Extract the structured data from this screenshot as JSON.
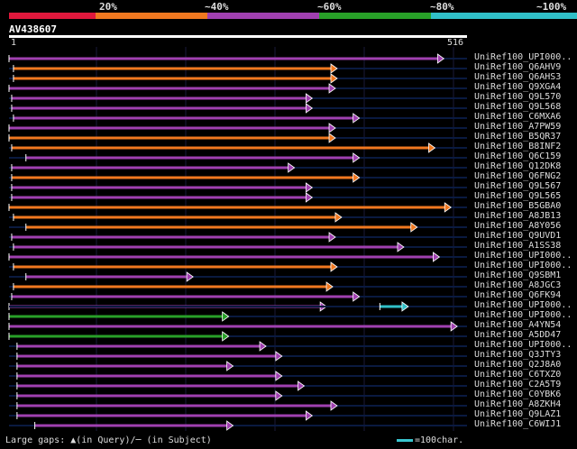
{
  "legend": {
    "labels": [
      "20%",
      "~40%",
      "~60%",
      "~80%",
      "~100%"
    ],
    "colors": [
      "#e0183c",
      "#f07820",
      "#a040b0",
      "#28a028",
      "#30c0c8"
    ]
  },
  "query": {
    "id": "AV438607",
    "start": "1",
    "end": "516"
  },
  "hits": [
    {
      "label": "UniRef100_UPI000..",
      "color": "#a040b0",
      "s": 1,
      "e": 490,
      "dim": false
    },
    {
      "label": "UniRef100_Q6AHV9",
      "color": "#f07820",
      "s": 6,
      "e": 370,
      "dim": false
    },
    {
      "label": "UniRef100_Q6AHS3",
      "color": "#f07820",
      "s": 6,
      "e": 370,
      "dim": false
    },
    {
      "label": "UniRef100_Q9XGA4",
      "color": "#a040b0",
      "s": 1,
      "e": 368,
      "dim": false
    },
    {
      "label": "UniRef100_Q9L570",
      "color": "#a040b0",
      "s": 4,
      "e": 342,
      "dim": false
    },
    {
      "label": "UniRef100_Q9L568",
      "color": "#a040b0",
      "s": 4,
      "e": 342,
      "dim": false
    },
    {
      "label": "UniRef100_C6MXA6",
      "color": "#a040b0",
      "s": 6,
      "e": 395,
      "dim": false
    },
    {
      "label": "UniRef100_A7PW59",
      "color": "#a040b0",
      "s": 1,
      "e": 368,
      "dim": false
    },
    {
      "label": "UniRef100_B5QR37",
      "color": "#f07820",
      "s": 1,
      "e": 368,
      "dim": false
    },
    {
      "label": "UniRef100_B8INF2",
      "color": "#f07820",
      "s": 4,
      "e": 480,
      "dim": false
    },
    {
      "label": "UniRef100_Q6C159",
      "color": "#a040b0",
      "s": 20,
      "e": 395,
      "dim": false
    },
    {
      "label": "UniRef100_Q12DK8",
      "color": "#a040b0",
      "s": 4,
      "e": 322,
      "dim": false
    },
    {
      "label": "UniRef100_Q6FNG2",
      "color": "#f07820",
      "s": 4,
      "e": 395,
      "dim": false
    },
    {
      "label": "UniRef100_Q9L567",
      "color": "#a040b0",
      "s": 4,
      "e": 342,
      "dim": false
    },
    {
      "label": "UniRef100_Q9L565",
      "color": "#a040b0",
      "s": 4,
      "e": 342,
      "dim": false
    },
    {
      "label": "UniRef100_B5GBA0",
      "color": "#f07820",
      "s": 1,
      "e": 498,
      "dim": false
    },
    {
      "label": "UniRef100_A8JB13",
      "color": "#f07820",
      "s": 6,
      "e": 375,
      "dim": false
    },
    {
      "label": "UniRef100_A8Y056",
      "color": "#f07820",
      "s": 20,
      "e": 460,
      "dim": false
    },
    {
      "label": "UniRef100_Q9UVD1",
      "color": "#a040b0",
      "s": 4,
      "e": 368,
      "dim": false
    },
    {
      "label": "UniRef100_A1SS38",
      "color": "#a040b0",
      "s": 6,
      "e": 445,
      "dim": false
    },
    {
      "label": "UniRef100_UPI000..",
      "color": "#a040b0",
      "s": 1,
      "e": 485,
      "dim": false
    },
    {
      "label": "UniRef100_UPI000..",
      "color": "#f07820",
      "s": 6,
      "e": 370,
      "dim": false
    },
    {
      "label": "UniRef100_Q9SBM1",
      "color": "#a040b0",
      "s": 20,
      "e": 208,
      "dim": false
    },
    {
      "label": "UniRef100_A8JGC3",
      "color": "#f07820",
      "s": 6,
      "e": 365,
      "dim": false
    },
    {
      "label": "UniRef100_Q6FK94",
      "color": "#a040b0",
      "s": 4,
      "e": 395,
      "dim": false
    },
    {
      "label": "UniRef100_UPI000..",
      "color": "#a040b0",
      "s": 1,
      "e": 358,
      "dim": false,
      "extra": {
        "color": "#30c0c8",
        "s": 418,
        "e": 450
      }
    },
    {
      "label": "UniRef100_UPI000..",
      "color": "#28a028",
      "s": 1,
      "e": 248,
      "dim": false
    },
    {
      "label": "UniRef100_A4YN54",
      "color": "#a040b0",
      "s": 1,
      "e": 505,
      "dim": false
    },
    {
      "label": "UniRef100_A5DD47",
      "color": "#28a028",
      "s": 1,
      "e": 248,
      "dim": false
    },
    {
      "label": "UniRef100_UPI000..",
      "color": "#a040b0",
      "s": 10,
      "e": 290,
      "dim": false
    },
    {
      "label": "UniRef100_Q3JTY3",
      "color": "#a040b0",
      "s": 10,
      "e": 308,
      "dim": false
    },
    {
      "label": "UniRef100_Q2J8A0",
      "color": "#a040b0",
      "s": 10,
      "e": 253,
      "dim": false
    },
    {
      "label": "UniRef100_C6TXZ0",
      "color": "#a040b0",
      "s": 10,
      "e": 308,
      "dim": false
    },
    {
      "label": "UniRef100_C2A5T9",
      "color": "#a040b0",
      "s": 10,
      "e": 333,
      "dim": false
    },
    {
      "label": "UniRef100_C0YBK6",
      "color": "#a040b0",
      "s": 10,
      "e": 308,
      "dim": false
    },
    {
      "label": "UniRef100_A8ZKH4",
      "color": "#a040b0",
      "s": 10,
      "e": 370,
      "dim": false
    },
    {
      "label": "UniRef100_Q9LAZ1",
      "color": "#a040b0",
      "s": 10,
      "e": 342,
      "dim": false
    },
    {
      "label": "UniRef100_C6WIJ1",
      "color": "#a040b0",
      "s": 30,
      "e": 253,
      "dim": false
    }
  ],
  "footer": {
    "text": "Large gaps: ▲(in Query)/─ (in Subject)"
  },
  "scale": {
    "text": "=100char."
  }
}
